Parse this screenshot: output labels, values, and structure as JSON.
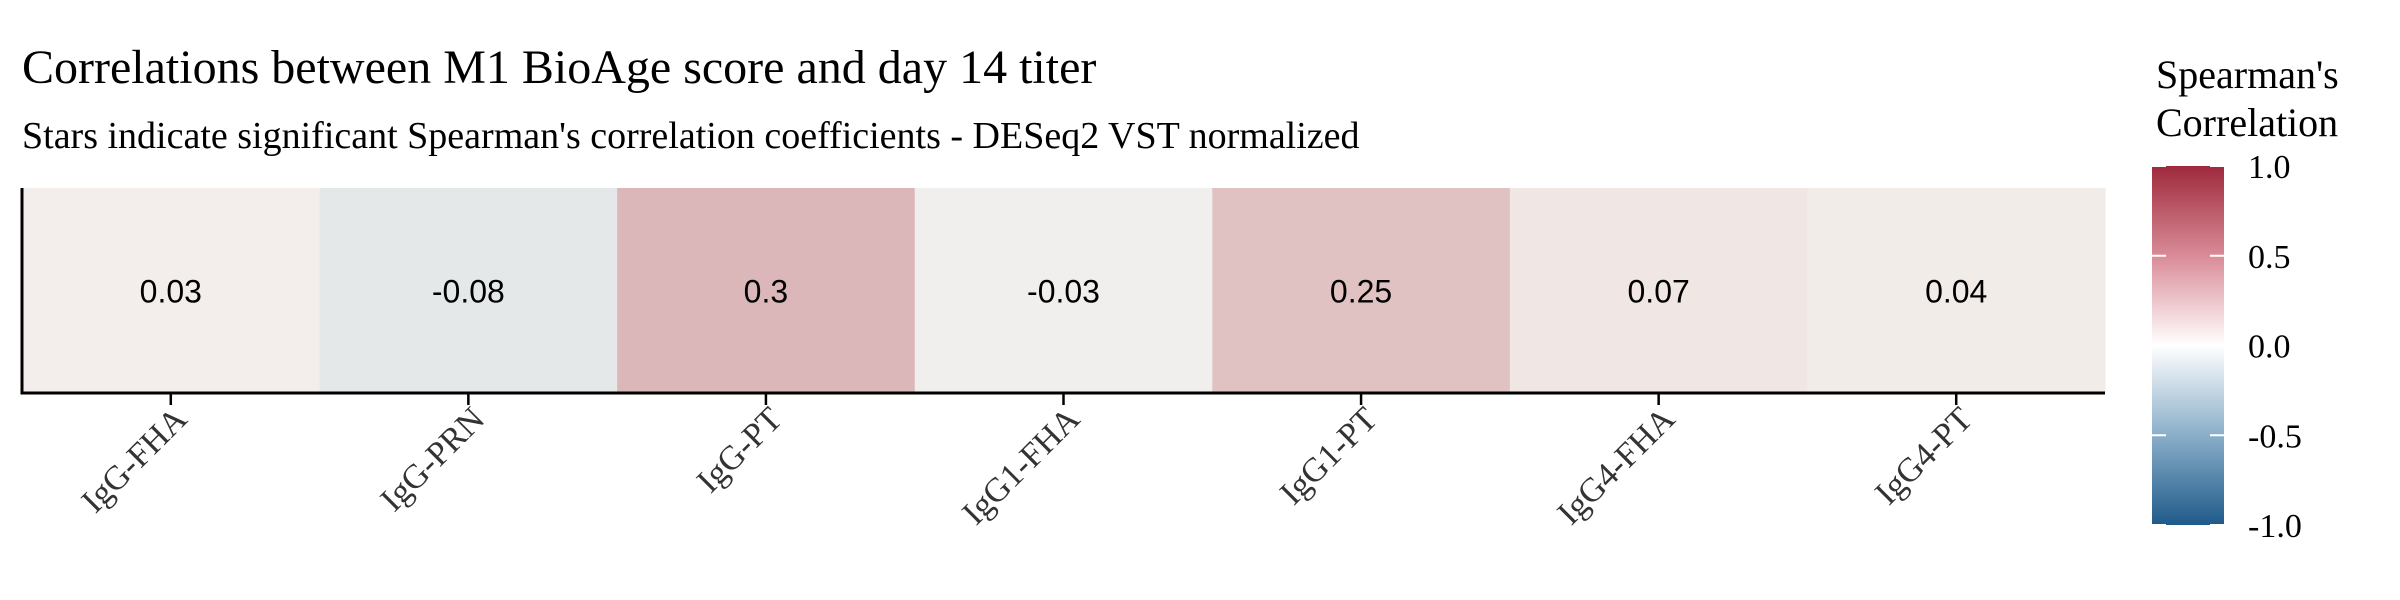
{
  "chart_data": {
    "type": "heatmap",
    "title": "Correlations between M1 BioAge score and day 14 titer",
    "subtitle": "Stars indicate significant Spearman's correlation coefficients - DESeq2 VST normalized",
    "categories": [
      "IgG-FHA",
      "IgG-PRN",
      "IgG-PT",
      "IgG1-FHA",
      "IgG1-PT",
      "IgG4-FHA",
      "IgG4-PT"
    ],
    "values": [
      0.03,
      -0.08,
      0.3,
      -0.03,
      0.25,
      0.07,
      0.04
    ],
    "labels": [
      "0.03",
      "-0.08",
      "0.3",
      "-0.03",
      "0.25",
      "0.07",
      "0.04"
    ],
    "legend": {
      "title_lines": [
        "Spearman's",
        "Correlation"
      ],
      "position": "right",
      "range": [
        -1,
        1
      ],
      "ticks": [
        1.0,
        0.5,
        0.0,
        -0.5,
        -1.0
      ],
      "tick_labels": [
        "1.0",
        "0.5",
        "0.0",
        "-0.5",
        "-1.0"
      ],
      "colors": {
        "low": "#1f5a8a",
        "mid": "#ffffff",
        "high": "#9e2a3c"
      }
    },
    "grid": false
  }
}
